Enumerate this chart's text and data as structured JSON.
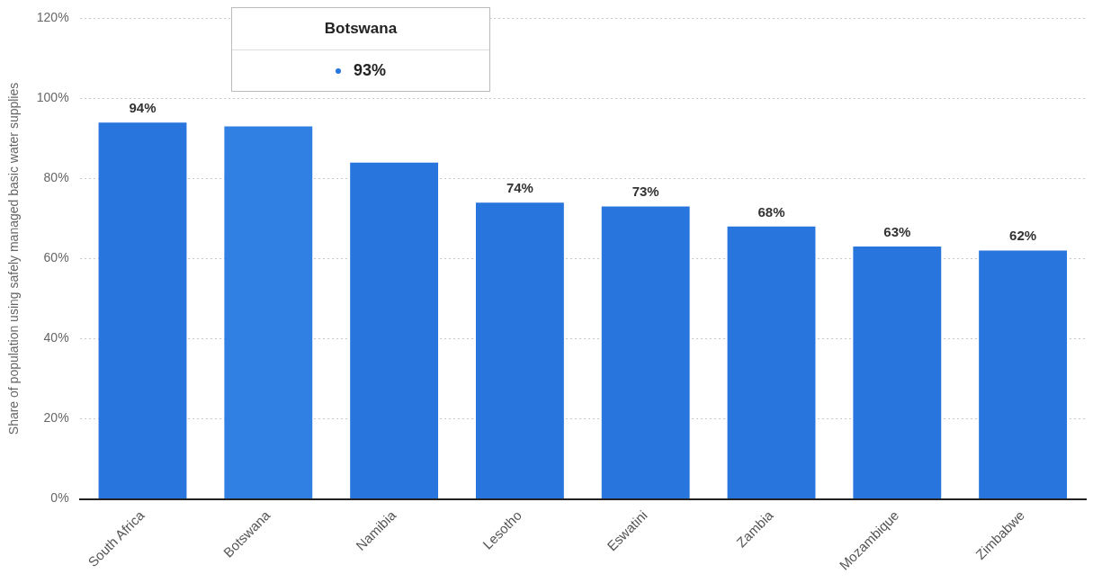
{
  "chart_data": {
    "type": "bar",
    "ylabel": "Share of population using safely managed basic water supplies",
    "categories": [
      "South Africa",
      "Botswana",
      "Namibia",
      "Lesotho",
      "Eswatini",
      "Zambia",
      "Mozambique",
      "Zimbabwe"
    ],
    "values": [
      94,
      93,
      84,
      74,
      73,
      68,
      63,
      62
    ],
    "colors": [
      "#2876dd",
      "#307fe2",
      "#2876dd",
      "#2876dd",
      "#2876dd",
      "#2876dd",
      "#2876dd",
      "#2876dd"
    ],
    "value_labels": [
      "94%",
      null,
      null,
      "74%",
      "73%",
      "68%",
      "63%",
      "62%"
    ],
    "annotations": [
      "Botswana",
      "93%"
    ],
    "ylim": [
      0,
      120
    ],
    "yticks": [
      {
        "value": 0,
        "label": "0%"
      },
      {
        "value": 20,
        "label": "20%"
      },
      {
        "value": 40,
        "label": "40%"
      },
      {
        "value": 60,
        "label": "60%"
      },
      {
        "value": 80,
        "label": "80%"
      },
      {
        "value": 100,
        "label": "100%"
      },
      {
        "value": 120,
        "label": "120%"
      }
    ],
    "grid": "y",
    "legend": false
  }
}
